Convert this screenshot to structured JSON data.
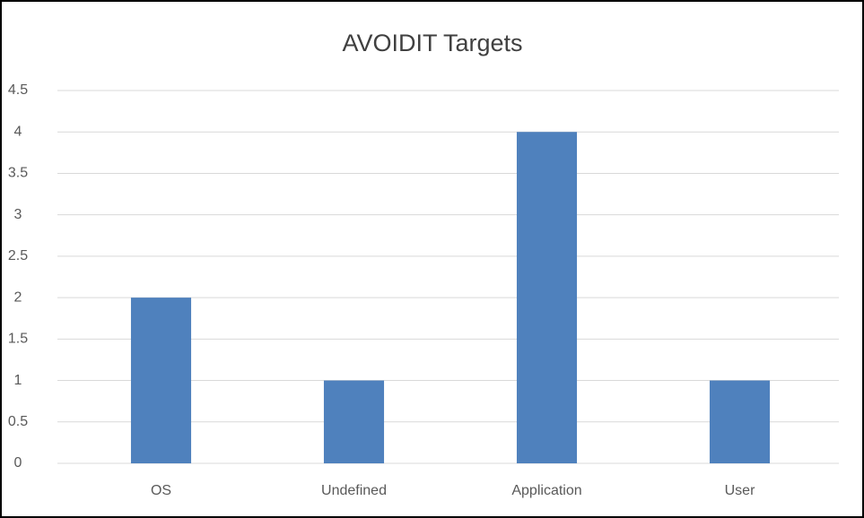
{
  "chart_data": {
    "type": "bar",
    "title": "AVOIDIT Targets",
    "categories": [
      "OS",
      "Undefined",
      "Application",
      "User"
    ],
    "values": [
      2,
      1,
      4,
      1
    ],
    "color": "#4f81bd",
    "ylim": [
      0,
      4.5
    ],
    "yticks": [
      0,
      0.5,
      1,
      1.5,
      2,
      2.5,
      3,
      3.5,
      4,
      4.5
    ],
    "grid": true
  }
}
